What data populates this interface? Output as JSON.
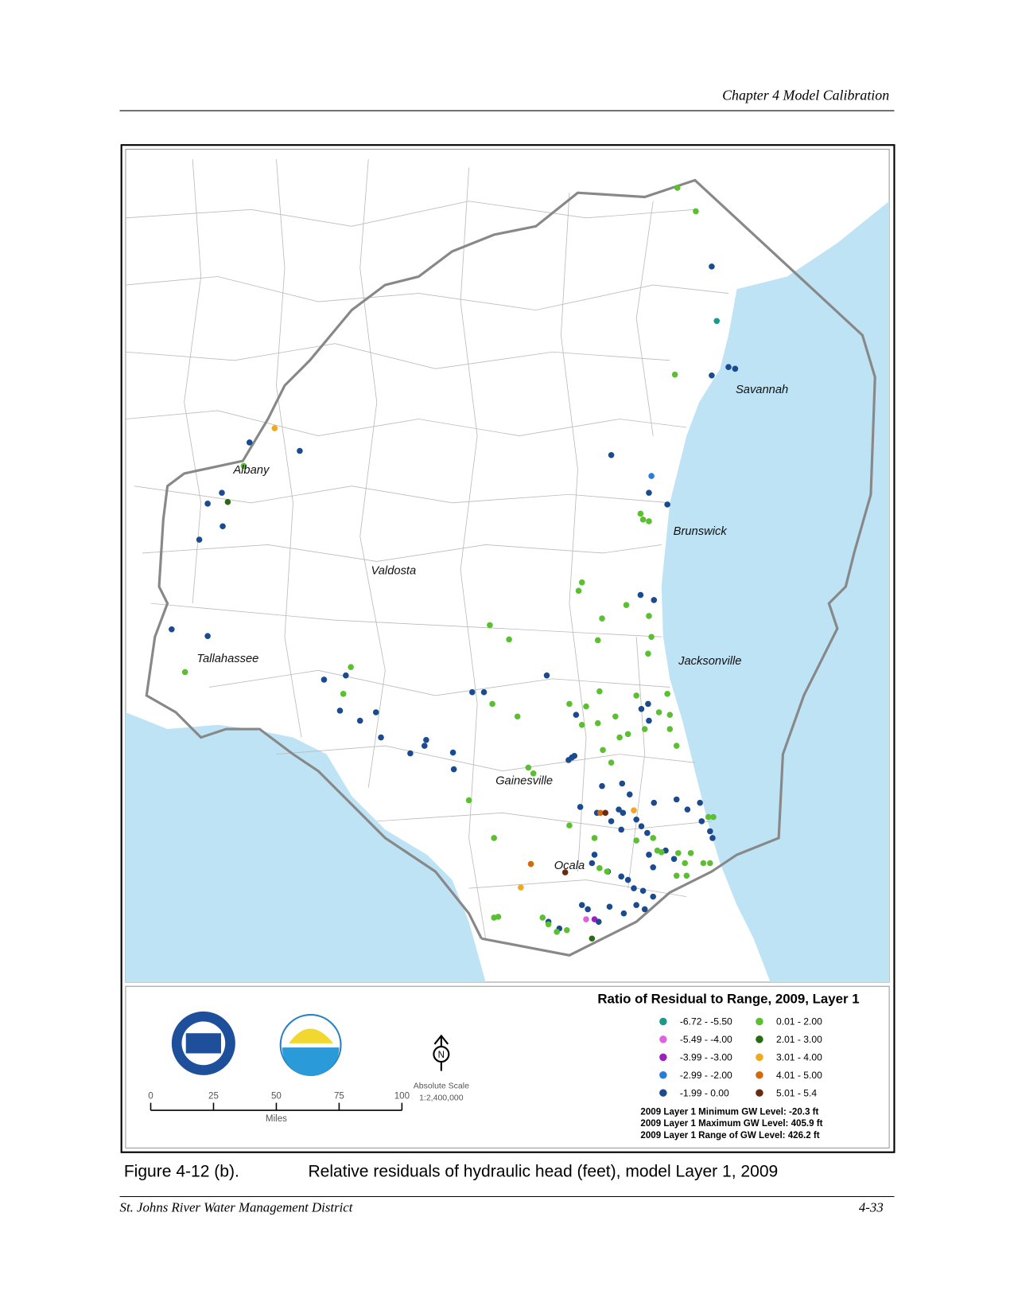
{
  "header": {
    "title": "Chapter 4 Model Calibration"
  },
  "map": {
    "places": [
      "Savannah",
      "Albany",
      "Brunswick",
      "Valdosta",
      "Jacksonville",
      "Tallahassee",
      "Gainesville",
      "Ocala"
    ],
    "legend": {
      "title": "Ratio of Residual to Range, 2009, Layer 1",
      "items": [
        {
          "label": "-6.72 - -5.50",
          "color": "#1a9a8a"
        },
        {
          "label": "-5.49 - -4.00",
          "color": "#e060e0"
        },
        {
          "label": "-3.99 - -3.00",
          "color": "#9a20c0"
        },
        {
          "label": "-2.99 - -2.00",
          "color": "#2a7ad8"
        },
        {
          "label": "-1.99 - 0.00",
          "color": "#1a4a90"
        },
        {
          "label": "0.01 - 2.00",
          "color": "#5ac030"
        },
        {
          "label": "2.01 - 3.00",
          "color": "#2a6a10"
        },
        {
          "label": "3.01 - 4.00",
          "color": "#f0a820"
        },
        {
          "label": "4.01 - 5.00",
          "color": "#d06a10"
        },
        {
          "label": "5.01 - 5.4",
          "color": "#6a2a10"
        }
      ],
      "notes": [
        "2009 Layer 1 Minimum GW Level: -20.3  ft",
        "2009 Layer 1 Maximum GW Level: 405.9  ft",
        "2009 Layer 1 Range of GW Level: 426.2  ft"
      ]
    },
    "scale_bar": {
      "ticks": [
        "0",
        "25",
        "50",
        "75",
        "100"
      ],
      "unit": "Miles",
      "title": "Absolute Scale",
      "ratio": "1:2,400,000"
    }
  },
  "caption": {
    "label": "Figure 4-12 (b).",
    "text": "Relative residuals of hydraulic head (feet), model Layer 1, 2009"
  },
  "footer": {
    "left": "St. Johns River Water Management District",
    "right": "4-33"
  }
}
